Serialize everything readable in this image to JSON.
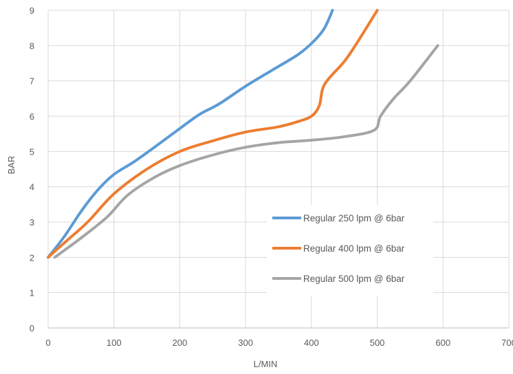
{
  "chart_data": {
    "type": "line",
    "title": "",
    "xlabel": "L/MIN",
    "ylabel": "BAR",
    "xlim": [
      0,
      700
    ],
    "ylim": [
      0,
      9
    ],
    "x_ticks": [
      0,
      100,
      200,
      300,
      400,
      500,
      600,
      700
    ],
    "y_ticks": [
      0,
      1,
      2,
      3,
      4,
      5,
      6,
      7,
      8,
      9
    ],
    "grid": true,
    "legend_position": "center-right",
    "series": [
      {
        "name": "Regular 250 lpm @ 6bar",
        "color": "#5B9BD5",
        "points": [
          [
            0,
            2
          ],
          [
            25,
            2.6
          ],
          [
            50,
            3.3
          ],
          [
            75,
            3.9
          ],
          [
            100,
            4.35
          ],
          [
            130,
            4.7
          ],
          [
            160,
            5.1
          ],
          [
            200,
            5.65
          ],
          [
            230,
            6.05
          ],
          [
            260,
            6.35
          ],
          [
            300,
            6.85
          ],
          [
            340,
            7.3
          ],
          [
            380,
            7.75
          ],
          [
            405,
            8.15
          ],
          [
            420,
            8.5
          ],
          [
            432,
            9
          ]
        ]
      },
      {
        "name": "Regular 400 lpm @ 6bar",
        "color": "#ED7D31",
        "points": [
          [
            0,
            2
          ],
          [
            30,
            2.5
          ],
          [
            60,
            3.0
          ],
          [
            100,
            3.8
          ],
          [
            150,
            4.5
          ],
          [
            200,
            5.0
          ],
          [
            250,
            5.3
          ],
          [
            300,
            5.55
          ],
          [
            350,
            5.7
          ],
          [
            380,
            5.85
          ],
          [
            400,
            6.0
          ],
          [
            412,
            6.3
          ],
          [
            420,
            6.9
          ],
          [
            450,
            7.55
          ],
          [
            470,
            8.1
          ],
          [
            500,
            9
          ]
        ]
      },
      {
        "name": "Regular 500 lpm @ 6bar",
        "color": "#A5A5A5",
        "points": [
          [
            10,
            2
          ],
          [
            50,
            2.55
          ],
          [
            90,
            3.15
          ],
          [
            120,
            3.75
          ],
          [
            160,
            4.25
          ],
          [
            200,
            4.6
          ],
          [
            250,
            4.9
          ],
          [
            300,
            5.12
          ],
          [
            350,
            5.25
          ],
          [
            400,
            5.32
          ],
          [
            450,
            5.42
          ],
          [
            495,
            5.6
          ],
          [
            505,
            6.0
          ],
          [
            525,
            6.5
          ],
          [
            550,
            7.0
          ],
          [
            592,
            8.0
          ]
        ]
      }
    ]
  }
}
